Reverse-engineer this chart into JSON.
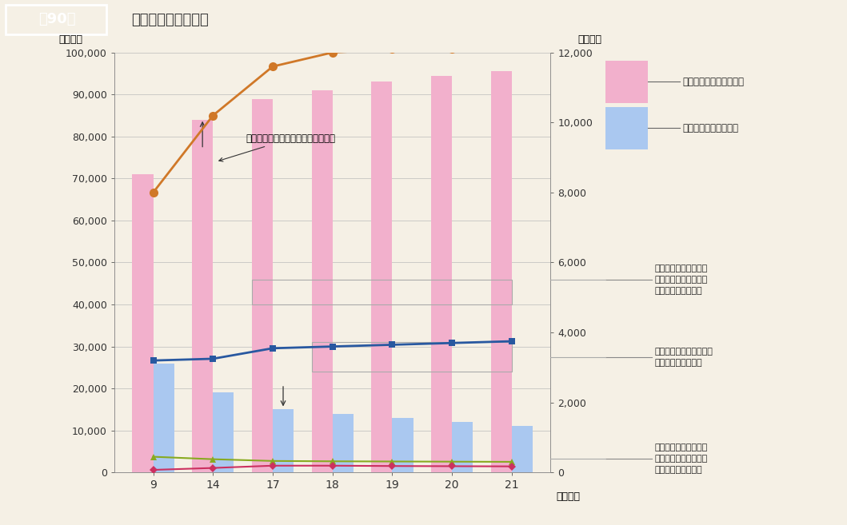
{
  "years": [
    9,
    14,
    17,
    18,
    19,
    20,
    21
  ],
  "pink_bars": [
    71000,
    84000,
    89000,
    91000,
    93000,
    94500,
    95500
  ],
  "blue_bars": [
    26000,
    19000,
    15000,
    14000,
    13000,
    12000,
    11000
  ],
  "orange_line": [
    8000,
    10200,
    11600,
    12000,
    12100,
    12100,
    12200
  ],
  "blue_line_right": [
    3200,
    3250,
    3550,
    3600,
    3650,
    3700,
    3750
  ],
  "green_line": [
    450,
    380,
    330,
    320,
    315,
    310,
    305
  ],
  "magenta_line": [
    75,
    130,
    195,
    195,
    185,
    180,
    175
  ],
  "left_ylim": [
    0,
    100000
  ],
  "right_ylim": [
    0,
    12000
  ],
  "left_yticks": [
    0,
    10000,
    20000,
    30000,
    40000,
    50000,
    60000,
    70000,
    80000,
    90000,
    100000
  ],
  "right_yticks": [
    0,
    2000,
    4000,
    6000,
    8000,
    10000,
    12000
  ],
  "bg_color": "#f5f0e5",
  "header_left_color": "#9b3a3a",
  "header_right_color": "#f0ebe0",
  "pink_bar_color": "#f2b0cc",
  "blue_bar_color": "#aac8f0",
  "orange_color": "#d07828",
  "blue_right_color": "#2858a0",
  "green_color": "#88aa20",
  "magenta_color": "#cc3060",
  "title_box_text": "第90図",
  "title_main_text": "下水処理人口の推移",
  "ylabel_left": "（千人）",
  "ylabel_right": "（千人）",
  "xlabel": "（年度）",
  "ann_orange": "合併処理浄化槽処理人口（右目盛）",
  "legend_pink": "公共下水道現在排水人口",
  "legend_blue": "し尿処理施設処理人口",
  "ann_nougyo": "農業集落排水施設現在\n排水人口：うち汚水に\n係るもの（右目盛）",
  "ann_community": "コミュニティ・プラント\n処理人口（右目盛）",
  "ann_gyogyo": "漁業集落排水施設現在\n排水人口：うち汚水に\n係るもの（右目盛）"
}
